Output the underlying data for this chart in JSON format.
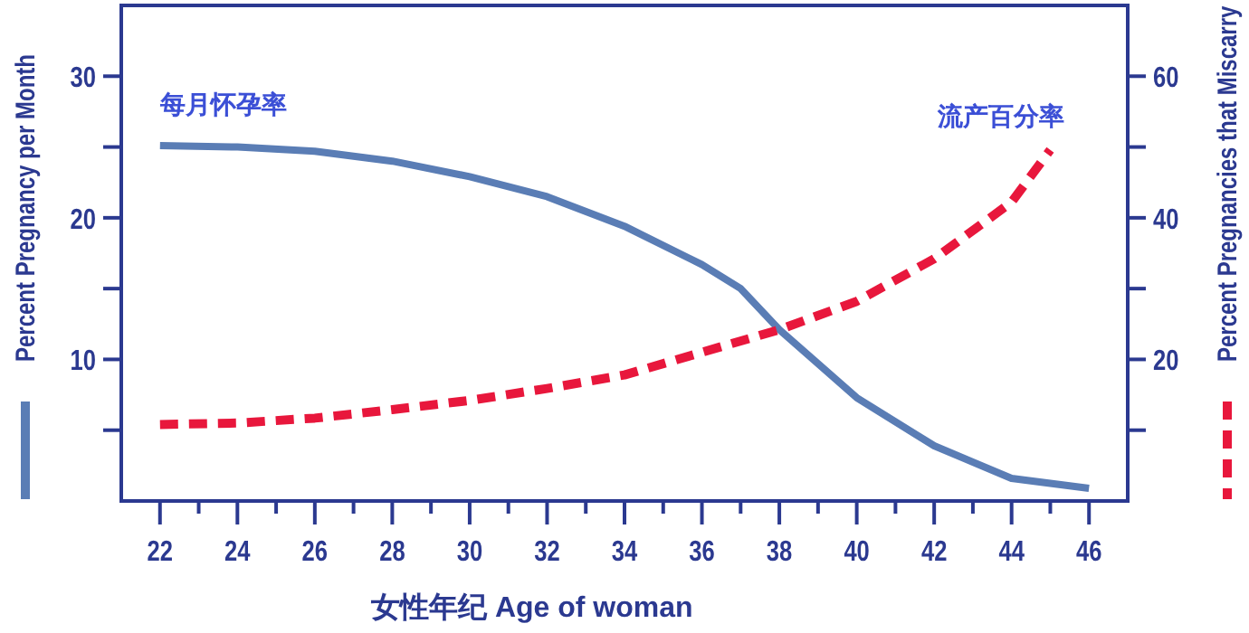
{
  "chart_data": {
    "type": "line",
    "xlabel": "女性年纪  Age of woman",
    "ylabel": "Percent Pregnancy per Month",
    "y2label": "Percent Pregnancies that Miscarry",
    "annotations": [
      "每月怀孕率",
      "流产百分率"
    ],
    "series": [
      {
        "color": "#5a7db5",
        "line_style": "solid",
        "x": [
          22,
          24,
          26,
          28,
          30,
          32,
          34,
          36,
          37,
          38,
          40,
          42,
          44,
          46
        ],
        "values": [
          25.1,
          25.0,
          24.7,
          24.0,
          22.9,
          21.5,
          19.4,
          16.7,
          15.0,
          12.1,
          7.3,
          3.9,
          1.6,
          0.9
        ]
      },
      {
        "color": "#e8173c",
        "line_style": "dashed",
        "axis": "y2",
        "x": [
          22,
          24,
          26,
          28,
          30,
          32,
          34,
          36,
          38,
          40,
          42,
          44,
          45
        ],
        "values": [
          10.8,
          11.0,
          11.7,
          12.9,
          14.2,
          15.9,
          17.8,
          21.0,
          24.2,
          28.2,
          34.2,
          42.2,
          49.6
        ]
      }
    ],
    "xlim": [
      21,
      47
    ],
    "xticks": [
      22,
      {
        "value": 23,
        "label": null
      },
      24,
      {
        "value": 25,
        "label": null
      },
      26,
      {
        "value": 27,
        "label": null
      },
      28,
      {
        "value": 29,
        "label": null
      },
      30,
      {
        "value": 31,
        "label": null
      },
      32,
      {
        "value": 33,
        "label": null
      },
      34,
      {
        "value": 35,
        "label": null
      },
      36,
      {
        "value": 37,
        "label": null
      },
      38,
      {
        "value": 39,
        "label": null
      },
      40,
      {
        "value": 41,
        "label": null
      },
      42,
      {
        "value": 43,
        "label": null
      },
      44,
      {
        "value": 45,
        "label": null
      },
      46
    ],
    "ylim": [
      0,
      35
    ],
    "yticks": [
      {
        "value": 5,
        "label": null
      },
      10,
      {
        "value": 15,
        "label": null
      },
      20,
      {
        "value": 25,
        "label": null
      },
      30
    ],
    "y2lim": [
      0,
      70
    ],
    "y2ticks": [
      {
        "value": 10,
        "label": null
      },
      20,
      {
        "value": 30,
        "label": null
      },
      40,
      {
        "value": 50,
        "label": null
      },
      60
    ],
    "grid": false,
    "marker": "none"
  }
}
